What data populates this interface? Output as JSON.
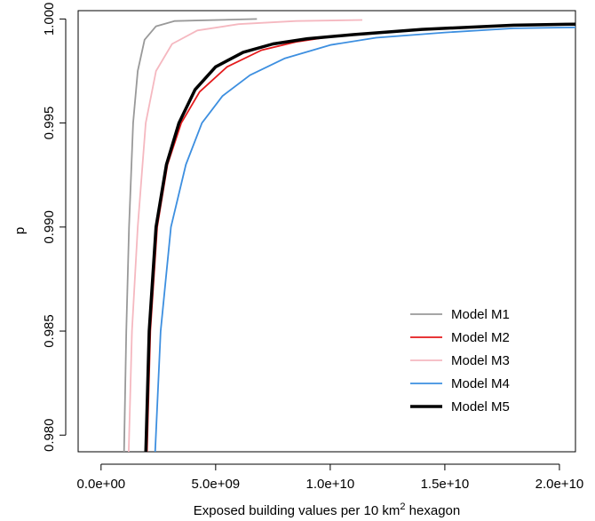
{
  "chart_data": {
    "type": "line",
    "title": "",
    "xlabel": "Exposed building values per 10 km",
    "xlabel_superscript": "2",
    "xlabel_suffix": " hexagon",
    "ylabel": "p",
    "xlim": [
      -1000000000.0,
      20700000000.0
    ],
    "ylim": [
      0.9792,
      1.0004
    ],
    "x_ticks": [
      0,
      5000000000.0,
      10000000000.0,
      15000000000.0,
      20000000000.0
    ],
    "x_tick_labels": [
      "0.0e+00",
      "5.0e+09",
      "1.0e+10",
      "1.5e+10",
      "2.0e+10"
    ],
    "y_ticks": [
      0.98,
      0.985,
      0.99,
      0.995,
      1.0
    ],
    "y_tick_labels": [
      "0.980",
      "0.985",
      "0.990",
      "0.995",
      "1.000"
    ],
    "grid": false,
    "legend_position": "bottom-right",
    "series": [
      {
        "name": "Model M1",
        "color": "#999999",
        "points": [
          [
            1000000000.0,
            0.979
          ],
          [
            1100000000.0,
            0.985
          ],
          [
            1220000000.0,
            0.99
          ],
          [
            1400000000.0,
            0.995
          ],
          [
            1600000000.0,
            0.9975
          ],
          [
            1900000000.0,
            0.999
          ],
          [
            2400000000.0,
            0.99965
          ],
          [
            3200000000.0,
            0.9999
          ],
          [
            6800000000.0,
            1.0
          ]
        ]
      },
      {
        "name": "Model M2",
        "color": "#e41a1c",
        "points": [
          [
            2000000000.0,
            0.979
          ],
          [
            2150000000.0,
            0.985
          ],
          [
            2450000000.0,
            0.99
          ],
          [
            2900000000.0,
            0.993
          ],
          [
            3500000000.0,
            0.995
          ],
          [
            4300000000.0,
            0.9965
          ],
          [
            5500000000.0,
            0.9977
          ],
          [
            7000000000.0,
            0.9985
          ],
          [
            8500000000.0,
            0.9989
          ],
          [
            10000000000.0,
            0.99915
          ],
          [
            12000000000.0,
            0.99935
          ],
          [
            15000000000.0,
            0.99955
          ],
          [
            18000000000.0,
            0.9997
          ],
          [
            20700000000.0,
            0.99975
          ]
        ]
      },
      {
        "name": "Model M3",
        "color": "#f5b8c0",
        "points": [
          [
            1200000000.0,
            0.979
          ],
          [
            1350000000.0,
            0.985
          ],
          [
            1600000000.0,
            0.99
          ],
          [
            1950000000.0,
            0.995
          ],
          [
            2400000000.0,
            0.9975
          ],
          [
            3100000000.0,
            0.9988
          ],
          [
            4200000000.0,
            0.99945
          ],
          [
            6000000000.0,
            0.99975
          ],
          [
            8500000000.0,
            0.9999
          ],
          [
            11400000000.0,
            0.99995
          ]
        ]
      },
      {
        "name": "Model M4",
        "color": "#3d8fe0",
        "points": [
          [
            2350000000.0,
            0.979
          ],
          [
            2600000000.0,
            0.985
          ],
          [
            3050000000.0,
            0.99
          ],
          [
            3700000000.0,
            0.993
          ],
          [
            4400000000.0,
            0.995
          ],
          [
            5300000000.0,
            0.9963
          ],
          [
            6500000000.0,
            0.9973
          ],
          [
            8000000000.0,
            0.9981
          ],
          [
            10000000000.0,
            0.99875
          ],
          [
            12000000000.0,
            0.9991
          ],
          [
            15000000000.0,
            0.99935
          ],
          [
            18000000000.0,
            0.99955
          ],
          [
            20700000000.0,
            0.9996
          ]
        ]
      },
      {
        "name": "Model M5",
        "color": "#000000",
        "points": [
          [
            1950000000.0,
            0.979
          ],
          [
            2100000000.0,
            0.985
          ],
          [
            2400000000.0,
            0.99
          ],
          [
            2850000000.0,
            0.993
          ],
          [
            3400000000.0,
            0.995
          ],
          [
            4100000000.0,
            0.9966
          ],
          [
            5000000000.0,
            0.9977
          ],
          [
            6200000000.0,
            0.9984
          ],
          [
            7500000000.0,
            0.9988
          ],
          [
            9000000000.0,
            0.99905
          ],
          [
            11000000000.0,
            0.99925
          ],
          [
            14000000000.0,
            0.9995
          ],
          [
            18000000000.0,
            0.9997
          ],
          [
            20700000000.0,
            0.99975
          ]
        ]
      }
    ]
  }
}
